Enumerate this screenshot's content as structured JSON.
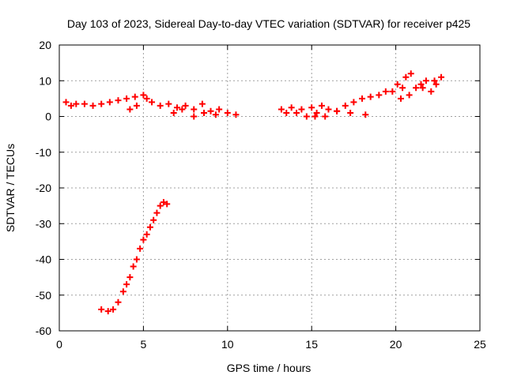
{
  "chart_data": {
    "type": "scatter",
    "title": "Day 103 of 2023, Sidereal Day-to-day VTEC variation (SDTVAR) for receiver p425",
    "xlabel": "GPS time / hours",
    "ylabel": "SDTVAR / TECUs",
    "xlim": [
      0,
      25
    ],
    "ylim": [
      -60,
      20
    ],
    "xticks": [
      0,
      5,
      10,
      15,
      20,
      25
    ],
    "yticks": [
      -60,
      -50,
      -40,
      -30,
      -20,
      -10,
      0,
      10,
      20
    ],
    "xtick_labels": [
      "0",
      "5",
      "10",
      "15",
      "20",
      "25"
    ],
    "ytick_labels": [
      "-60",
      "-50",
      "-40",
      "-30",
      "-20",
      "-10",
      "0",
      "10",
      "20"
    ],
    "grid": true,
    "marker": "+",
    "series": [
      {
        "name": "SDTVAR",
        "color": "#ff0000",
        "x": [
          0.4,
          0.7,
          1.0,
          1.5,
          2.0,
          2.5,
          3.0,
          3.5,
          4.0,
          4.5,
          5.0,
          5.2,
          4.2,
          4.6,
          5.5,
          6.0,
          6.5,
          7.0,
          7.5,
          8.0,
          8.5,
          9.0,
          9.5,
          10.0,
          10.5,
          6.8,
          7.3,
          8.0,
          8.6,
          9.3,
          13.2,
          13.5,
          13.8,
          14.1,
          14.4,
          14.7,
          15.0,
          15.3,
          15.6,
          16.0,
          16.5,
          17.0,
          17.5,
          18.0,
          18.5,
          19.0,
          19.4,
          15.2,
          15.8,
          16.5,
          17.3,
          18.2,
          19.8,
          20.1,
          20.4,
          20.6,
          20.9,
          21.2,
          21.5,
          21.8,
          22.1,
          22.4,
          22.7,
          20.3,
          20.8,
          21.6,
          22.3,
          2.5,
          2.9,
          3.2,
          3.5,
          3.8,
          4.0,
          4.2,
          4.4,
          4.6,
          4.8,
          5.0,
          5.2,
          5.4,
          5.6,
          5.8,
          6.0,
          6.2,
          6.4
        ],
        "y": [
          4,
          3,
          3.5,
          3.5,
          3,
          3.5,
          4,
          4.5,
          5,
          5.5,
          6,
          5,
          2,
          3,
          4,
          3,
          3.5,
          2.5,
          3,
          2,
          3.5,
          1.5,
          2,
          1,
          0.5,
          1,
          2,
          0,
          1,
          0.5,
          2,
          1,
          2.5,
          1,
          2,
          0,
          2.5,
          1,
          3,
          2,
          1.5,
          3,
          4,
          5,
          5.5,
          6,
          7,
          0,
          0,
          1.5,
          1,
          0.5,
          7,
          9,
          8,
          11,
          12,
          8,
          9,
          10,
          7,
          9,
          11,
          5,
          6,
          8,
          10,
          -54,
          -54.5,
          -54,
          -52,
          -49,
          -47,
          -45,
          -42,
          -40,
          -37,
          -34.5,
          -33,
          -31,
          -29,
          -27,
          -25,
          -24,
          -24.5
        ]
      }
    ]
  }
}
